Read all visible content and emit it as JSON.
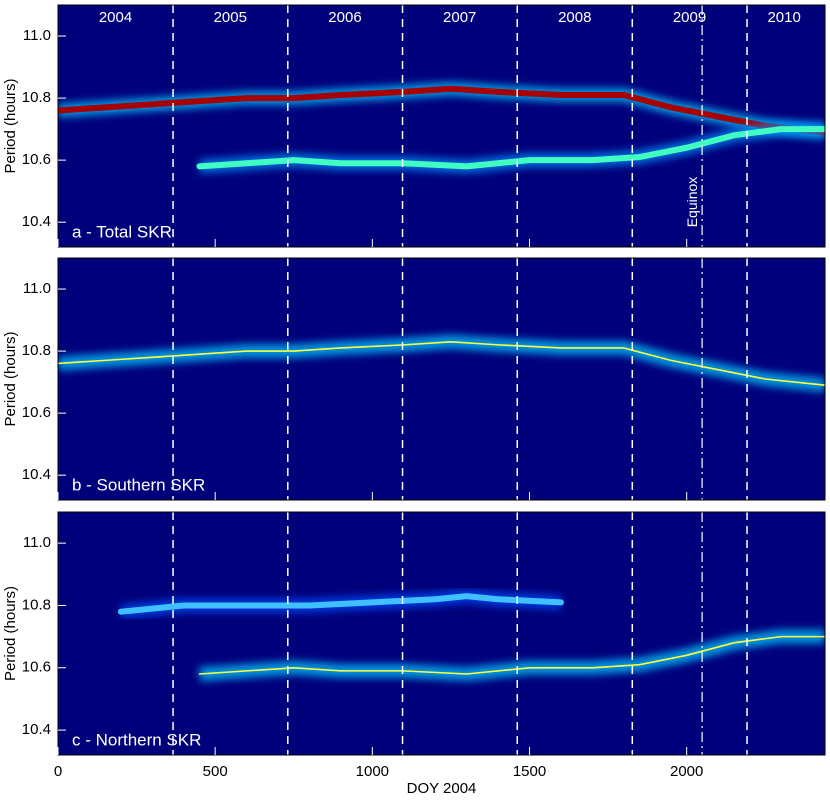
{
  "chart_data": [
    {
      "type": "line",
      "title": "a - Total SKR",
      "ylabel": "Period (hours)",
      "xlim": [
        0,
        2440
      ],
      "ylim": [
        10.32,
        11.1
      ],
      "yticks": [
        10.4,
        10.6,
        10.8,
        {
          "value": 11,
          "label": "11.0"
        }
      ],
      "vlines": [
        366,
        731,
        1096,
        1461,
        1827,
        2192
      ],
      "equinox": {
        "x": 2049,
        "text": "Equinox"
      },
      "year_labels": [
        {
          "x": 183,
          "text": "2004"
        },
        {
          "x": 548,
          "text": "2005"
        },
        {
          "x": 913,
          "text": "2006"
        },
        {
          "x": 1278,
          "text": "2007"
        },
        {
          "x": 1644,
          "text": "2008"
        },
        {
          "x": 2009,
          "text": "2009"
        },
        {
          "x": 2310,
          "text": "2010"
        }
      ],
      "background": "#00007a",
      "series": [
        {
          "color": "#a80000",
          "glow": "#00c8ff",
          "x": [
            0,
            150,
            300,
            450,
            600,
            750,
            900,
            1100,
            1250,
            1400,
            1600,
            1800,
            1950,
            2100,
            2250,
            2440
          ],
          "values": [
            10.76,
            10.77,
            10.78,
            10.79,
            10.8,
            10.8,
            10.81,
            10.82,
            10.83,
            10.82,
            10.81,
            10.81,
            10.77,
            10.74,
            10.71,
            10.69
          ]
        },
        {
          "color": "#40ffc0",
          "glow": "#0090ff",
          "x": [
            450,
            600,
            750,
            900,
            1100,
            1300,
            1500,
            1700,
            1850,
            2000,
            2150,
            2300,
            2440
          ],
          "values": [
            10.58,
            10.59,
            10.6,
            10.59,
            10.59,
            10.58,
            10.6,
            10.6,
            10.61,
            10.64,
            10.68,
            10.7,
            10.7
          ]
        }
      ]
    },
    {
      "type": "line",
      "title": "b - Southern SKR",
      "ylabel": "Period (hours)",
      "xlim": [
        0,
        2440
      ],
      "ylim": [
        10.32,
        11.1
      ],
      "yticks": [
        10.4,
        10.6,
        10.8,
        {
          "value": 11,
          "label": "11.0"
        }
      ],
      "vlines": [
        366,
        731,
        1096,
        1461,
        1827,
        2192
      ],
      "equinox": {
        "x": 2049
      },
      "background": "#00007a",
      "series": [
        {
          "color": "#ffff40",
          "glow": "#00c8ff",
          "x": [
            0,
            150,
            300,
            450,
            600,
            750,
            900,
            1100,
            1250,
            1400,
            1600,
            1800,
            1950,
            2100,
            2250,
            2440
          ],
          "values": [
            10.76,
            10.77,
            10.78,
            10.79,
            10.8,
            10.8,
            10.81,
            10.82,
            10.83,
            10.82,
            10.81,
            10.81,
            10.77,
            10.74,
            10.71,
            10.69
          ]
        }
      ]
    },
    {
      "type": "line",
      "title": "c - Northern SKR",
      "ylabel": "Period (hours)",
      "xlabel": "DOY 2004",
      "xlim": [
        0,
        2440
      ],
      "ylim": [
        10.32,
        11.1
      ],
      "xticks": [
        0,
        500,
        1000,
        1500,
        2000
      ],
      "yticks": [
        10.4,
        10.6,
        10.8,
        {
          "value": 11,
          "label": "11.0"
        }
      ],
      "vlines": [
        366,
        731,
        1096,
        1461,
        1827,
        2192
      ],
      "equinox": {
        "x": 2049
      },
      "background": "#00007a",
      "series": [
        {
          "color": "#40c0ff",
          "glow": "#0050ff",
          "x": [
            200,
            400,
            600,
            800,
            1000,
            1200,
            1300,
            1400,
            1600
          ],
          "values": [
            10.78,
            10.8,
            10.8,
            10.8,
            10.81,
            10.82,
            10.83,
            10.82,
            10.81
          ]
        },
        {
          "color": "#ffff40",
          "glow": "#00c8ff",
          "x": [
            450,
            600,
            750,
            900,
            1100,
            1300,
            1500,
            1700,
            1850,
            2000,
            2150,
            2300,
            2440
          ],
          "values": [
            10.58,
            10.59,
            10.6,
            10.59,
            10.59,
            10.58,
            10.6,
            10.6,
            10.61,
            10.64,
            10.68,
            10.7,
            10.7
          ]
        }
      ]
    }
  ]
}
